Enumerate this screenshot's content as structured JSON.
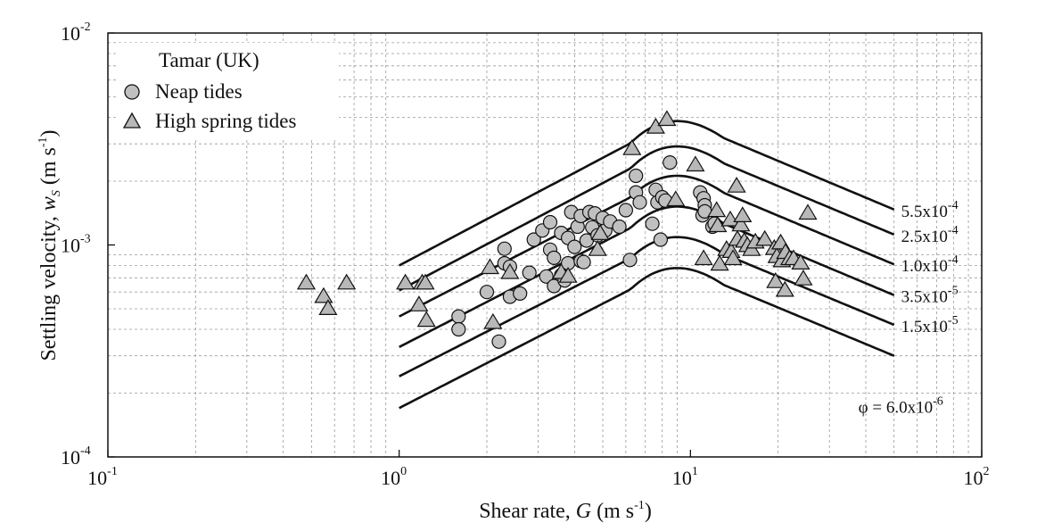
{
  "chart_data": {
    "type": "scatter",
    "title": "",
    "xscale": "log",
    "yscale": "log",
    "xlim": [
      0.1,
      100
    ],
    "ylim": [
      0.0001,
      0.01
    ],
    "grid": true,
    "x_ticks": [
      {
        "base": "10",
        "exp": "-1",
        "value": 0.1
      },
      {
        "base": "10",
        "exp": "0",
        "value": 1
      },
      {
        "base": "10",
        "exp": "1",
        "value": 10
      },
      {
        "base": "10",
        "exp": "2",
        "value": 100
      }
    ],
    "y_ticks": [
      {
        "base": "10",
        "exp": "-4",
        "value": 0.0001
      },
      {
        "base": "10",
        "exp": "-3",
        "value": 0.001
      },
      {
        "base": "10",
        "exp": "-2",
        "value": 0.01
      }
    ],
    "xlabel": {
      "pre": "Shear rate, ",
      "var": "G",
      "post": " (m s",
      "exp": "-1",
      "close": ")"
    },
    "ylabel": {
      "pre": "Settling velocity, ",
      "var": "w",
      "sub": "S",
      "post": " (m s",
      "exp": "-1",
      "close": ")"
    },
    "legend": {
      "position": "top-left",
      "title": "Tamar (UK)",
      "entries": [
        {
          "label": "Neap tides",
          "marker": "circle"
        },
        {
          "label": "High spring tides",
          "marker": "triangle"
        }
      ]
    },
    "series": [
      {
        "name": "Neap tides",
        "marker": "circle",
        "color": "#c0c0c0",
        "points": [
          [
            1.6,
            0.00046
          ],
          [
            1.6,
            0.0004
          ],
          [
            2.0,
            0.0006
          ],
          [
            2.2,
            0.00035
          ],
          [
            2.3,
            0.00096
          ],
          [
            2.3,
            0.00082
          ],
          [
            2.4,
            0.00057
          ],
          [
            2.4,
            0.00079
          ],
          [
            2.6,
            0.00059
          ],
          [
            2.8,
            0.00074
          ],
          [
            2.9,
            0.00106
          ],
          [
            3.1,
            0.00117
          ],
          [
            3.2,
            0.00071
          ],
          [
            3.3,
            0.00128
          ],
          [
            3.3,
            0.00095
          ],
          [
            3.4,
            0.00087
          ],
          [
            3.4,
            0.00064
          ],
          [
            3.6,
            0.00114
          ],
          [
            3.6,
            0.00072
          ],
          [
            3.7,
            0.00068
          ],
          [
            3.8,
            0.00108
          ],
          [
            3.8,
            0.00082
          ],
          [
            3.9,
            0.00143
          ],
          [
            4.0,
            0.00098
          ],
          [
            4.1,
            0.00122
          ],
          [
            4.2,
            0.00084
          ],
          [
            4.2,
            0.00137
          ],
          [
            4.3,
            0.00083
          ],
          [
            4.4,
            0.00105
          ],
          [
            4.5,
            0.00143
          ],
          [
            4.6,
            0.00121
          ],
          [
            4.7,
            0.00141
          ],
          [
            4.8,
            0.00111
          ],
          [
            5.0,
            0.00134
          ],
          [
            5.1,
            0.00117
          ],
          [
            5.3,
            0.00129
          ],
          [
            5.7,
            0.00122
          ],
          [
            6.0,
            0.00146
          ],
          [
            6.2,
            0.00085
          ],
          [
            6.5,
            0.00212
          ],
          [
            6.5,
            0.00177
          ],
          [
            6.7,
            0.00159
          ],
          [
            7.4,
            0.00126
          ],
          [
            7.6,
            0.00182
          ],
          [
            7.7,
            0.00159
          ],
          [
            7.9,
            0.00106
          ],
          [
            8.0,
            0.00168
          ],
          [
            8.2,
            0.00162
          ],
          [
            8.5,
            0.00245
          ],
          [
            10.8,
            0.00177
          ],
          [
            11.0,
            0.00138
          ],
          [
            11.1,
            0.00166
          ],
          [
            11.2,
            0.00154
          ],
          [
            11.2,
            0.00144
          ],
          [
            11.9,
            0.00122
          ],
          [
            12.1,
            0.00126
          ]
        ]
      },
      {
        "name": "High spring tides",
        "marker": "triangle",
        "color": "#b8b8b8",
        "points": [
          [
            0.48,
            0.00066
          ],
          [
            0.55,
            0.00057
          ],
          [
            0.57,
            0.0005
          ],
          [
            0.66,
            0.00066
          ],
          [
            1.05,
            0.00066
          ],
          [
            1.17,
            0.00052
          ],
          [
            1.2,
            0.00066
          ],
          [
            1.23,
            0.00066
          ],
          [
            1.24,
            0.00044
          ],
          [
            2.05,
            0.00078
          ],
          [
            2.1,
            0.00043
          ],
          [
            2.4,
            0.00074
          ],
          [
            3.6,
            0.00074
          ],
          [
            3.8,
            0.00071
          ],
          [
            4.8,
            0.00095
          ],
          [
            4.9,
            0.00113
          ],
          [
            6.3,
            0.00284
          ],
          [
            7.6,
            0.00359
          ],
          [
            8.3,
            0.0039
          ],
          [
            8.9,
            0.00163
          ],
          [
            10.4,
            0.00238
          ],
          [
            11.1,
            0.00086
          ],
          [
            12.3,
            0.00145
          ],
          [
            12.4,
            0.00123
          ],
          [
            12.6,
            0.00081
          ],
          [
            13.3,
            0.00095
          ],
          [
            13.7,
            0.00131
          ],
          [
            13.8,
            0.00093
          ],
          [
            14.0,
            0.00086
          ],
          [
            14.4,
            0.00189
          ],
          [
            14.5,
            0.00106
          ],
          [
            14.9,
            0.00124
          ],
          [
            15.1,
            0.00137
          ],
          [
            15.3,
            0.00104
          ],
          [
            15.7,
            0.00099
          ],
          [
            16.2,
            0.00095
          ],
          [
            16.7,
            0.00103
          ],
          [
            18.0,
            0.00106
          ],
          [
            19.4,
            0.00096
          ],
          [
            19.6,
            0.00067
          ],
          [
            19.8,
            0.00088
          ],
          [
            20.4,
            0.00102
          ],
          [
            20.6,
            0.00084
          ],
          [
            21.1,
            0.00061
          ],
          [
            21.2,
            0.00092
          ],
          [
            21.9,
            0.00086
          ],
          [
            22.6,
            0.00086
          ],
          [
            23.9,
            0.00082
          ],
          [
            24.4,
            0.00069
          ],
          [
            25.3,
            0.00141
          ]
        ]
      }
    ],
    "curves": [
      {
        "label": {
          "mant": "5.5x10",
          "exp": "-4"
        },
        "start": 0.0008,
        "peak": 0.00395,
        "end": 0.00147
      },
      {
        "label": {
          "mant": "2.5x10",
          "exp": "-4"
        },
        "start": 0.00061,
        "peak": 0.003,
        "end": 0.00112
      },
      {
        "label": {
          "mant": "1.0x10",
          "exp": "-4"
        },
        "start": 0.00046,
        "peak": 0.00218,
        "end": 0.00081
      },
      {
        "label": {
          "mant": "3.5x10",
          "exp": "-5"
        },
        "start": 0.00033,
        "peak": 0.00156,
        "end": 0.00058
      },
      {
        "label": {
          "mant": "1.5x10",
          "exp": "-5"
        },
        "start": 0.00024,
        "peak": 0.00112,
        "end": 0.00042
      },
      {
        "label": {
          "prefix": "φ = ",
          "mant": "6.0x10",
          "exp": "-6"
        },
        "start": 0.00017,
        "peak": 0.0008,
        "end": 0.0003
      }
    ],
    "curve_shape": {
      "x_start": 1.0,
      "x_peak": 9.0,
      "x_end": 50.0
    }
  }
}
